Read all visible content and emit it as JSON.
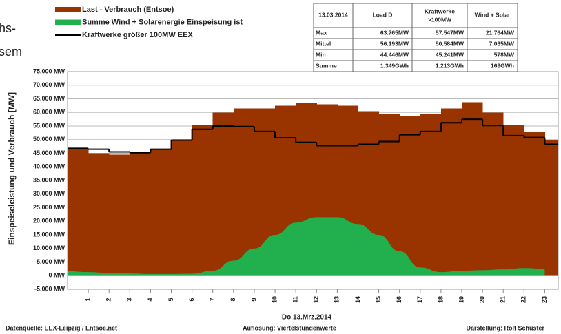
{
  "chart_data": {
    "type": "area",
    "y_label": "Einspeiseleistung und Verbrauch [MW]",
    "x_label": "Do 13.Mrz.2014",
    "x": [
      0,
      1,
      2,
      3,
      4,
      5,
      6,
      7,
      8,
      9,
      10,
      11,
      12,
      13,
      14,
      15,
      16,
      17,
      18,
      19,
      20,
      21,
      22,
      23
    ],
    "xlim": [
      0,
      23.65
    ],
    "xticks": [
      1,
      2,
      3,
      4,
      5,
      6,
      7,
      8,
      9,
      10,
      11,
      12,
      13,
      14,
      15,
      16,
      17,
      18,
      19,
      20,
      21,
      22,
      23
    ],
    "ylim": [
      -5000,
      75000
    ],
    "yticks": [
      {
        "value": -5000,
        "label": "-5.000 MW"
      },
      {
        "value": 0,
        "label": "0 MW"
      },
      {
        "value": 5000,
        "label": "5.000 MW"
      },
      {
        "value": 10000,
        "label": "10.000 MW"
      },
      {
        "value": 15000,
        "label": "15.000 MW"
      },
      {
        "value": 20000,
        "label": "20.000 MW"
      },
      {
        "value": 25000,
        "label": "25.000 MW"
      },
      {
        "value": 30000,
        "label": "30.000 MW"
      },
      {
        "value": 35000,
        "label": "35.000 MW"
      },
      {
        "value": 40000,
        "label": "40.000 MW"
      },
      {
        "value": 45000,
        "label": "45.000 MW"
      },
      {
        "value": 50000,
        "label": "50.000 MW"
      },
      {
        "value": 55000,
        "label": "55.000 MW"
      },
      {
        "value": 60000,
        "label": "60.000 MW"
      },
      {
        "value": 65000,
        "label": "65.000 MW"
      },
      {
        "value": 70000,
        "label": "70.000 MW"
      },
      {
        "value": 75000,
        "label": "75.000 MW"
      }
    ],
    "grid": true,
    "series": [
      {
        "name": "Last - Verbrauch (Entsoe)",
        "color": "#993300",
        "kind": "step-area",
        "values": [
          46500,
          45000,
          44500,
          45000,
          46500,
          49500,
          55500,
          60000,
          61500,
          61500,
          62500,
          63500,
          63000,
          62500,
          60500,
          59500,
          58500,
          59500,
          61500,
          63700,
          60000,
          55500,
          53000,
          50000
        ]
      },
      {
        "name": "Summe Wind + Solarenergie Einspeisung ist",
        "color": "#22b04e",
        "kind": "smooth-area",
        "values": [
          1600,
          1300,
          1000,
          800,
          600,
          600,
          700,
          1800,
          5500,
          10000,
          15000,
          19500,
          21500,
          21500,
          19000,
          15000,
          9000,
          3000,
          1300,
          1800,
          2000,
          2300,
          2800,
          2500
        ]
      },
      {
        "name": "Kraftwerke größer 100MW  EEX",
        "color": "#000000",
        "kind": "step-line",
        "values": [
          46800,
          46500,
          45500,
          45200,
          46500,
          49800,
          53800,
          55000,
          54800,
          53000,
          50700,
          49000,
          47800,
          47800,
          48300,
          49300,
          51800,
          53000,
          56200,
          57500,
          55200,
          51500,
          50800,
          48300
        ]
      }
    ]
  },
  "table": {
    "header": [
      "13.03.2014",
      "Load D",
      [
        "Kraftwerke",
        ">100MW"
      ],
      "Wind + Solar"
    ],
    "rows": [
      [
        "Max",
        "63.765MW",
        "57.547MW",
        "21.764MW"
      ],
      [
        "Mittel",
        "56.193MW",
        "50.584MW",
        "7.035MW"
      ],
      [
        "Min",
        "44.446MW",
        "45.241MW",
        "578MW"
      ],
      [
        "Summe",
        "1.349GWh",
        "1.213GWh",
        "169GWh"
      ]
    ]
  },
  "cropped_text": [
    "hs-",
    "sem"
  ],
  "footer": [
    "Datenquelle: EEX-Leipzig  /  Entsoe.net",
    "Auflösung: Viertelstundenwerte",
    "Darstellung: Rolf Schuster"
  ]
}
